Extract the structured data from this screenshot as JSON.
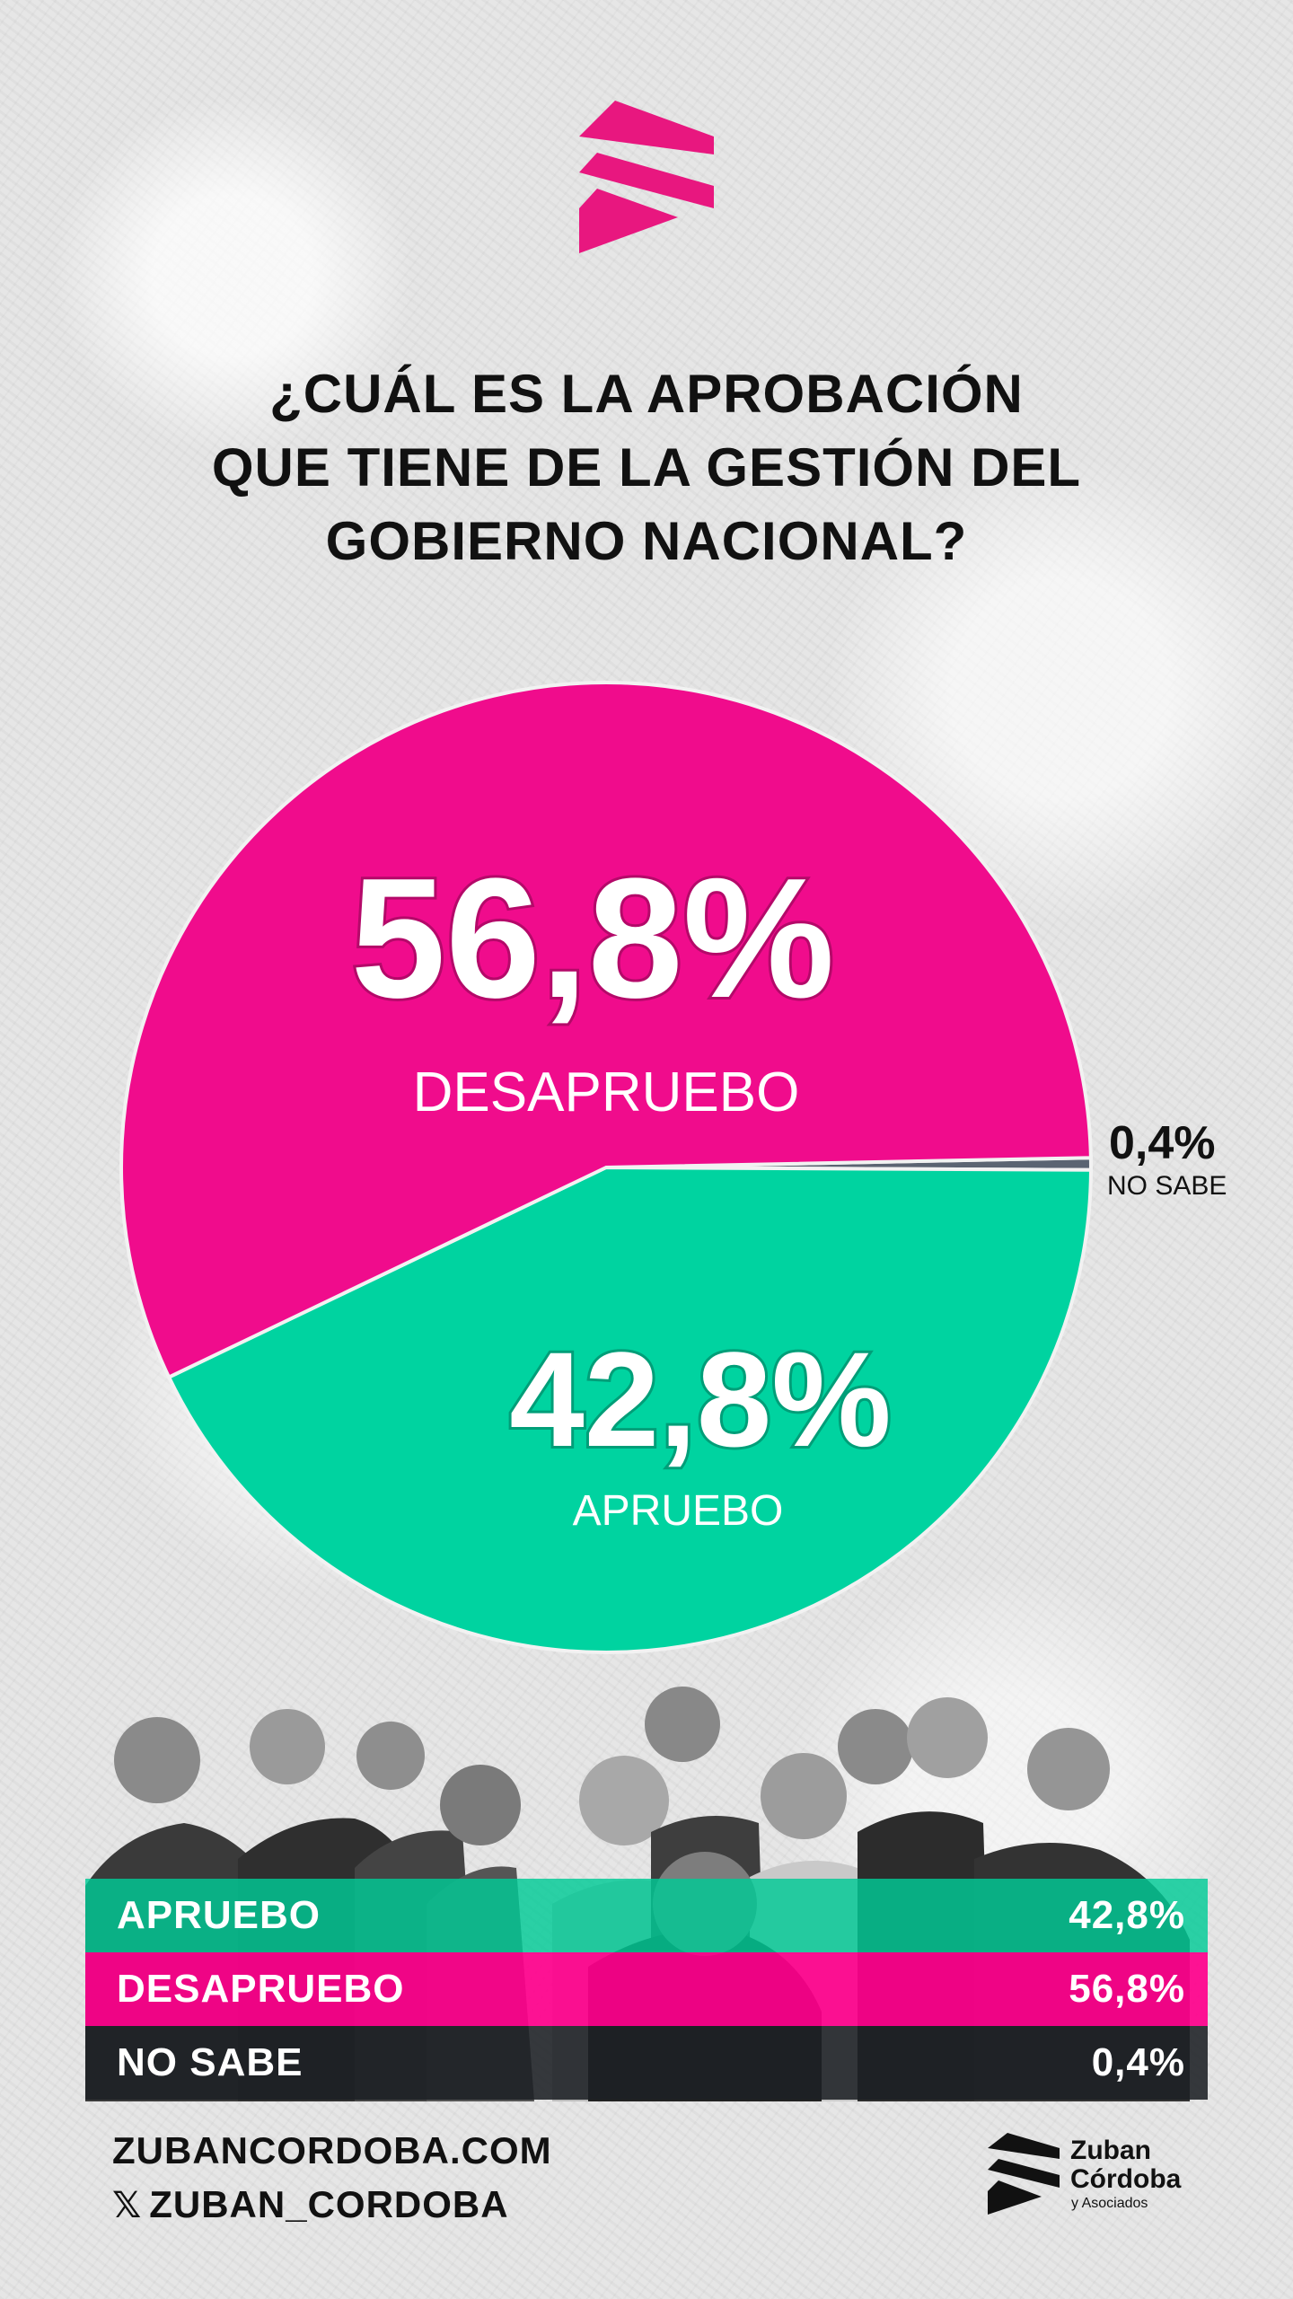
{
  "question": {
    "line1": "¿CUÁL ES LA APROBACIÓN",
    "line2": "QUE TIENE DE LA GESTIÓN DEL",
    "line3": "GOBIERNO NACIONAL?"
  },
  "colors": {
    "desapruebo": "#f00c8c",
    "apruebo": "#00d3a0",
    "no_sabe": "#5b6472",
    "dark": "#1c2024"
  },
  "chart_data": {
    "type": "pie",
    "slices": [
      {
        "label": "DESAPRUEBO",
        "value": 56.8,
        "display": "56,8%",
        "color": "#f00c8c"
      },
      {
        "label": "APRUEBO",
        "value": 42.8,
        "display": "42,8%",
        "color": "#00d3a0"
      },
      {
        "label": "NO SABE",
        "value": 0.4,
        "display": "0,4%",
        "color": "#5b6472"
      }
    ]
  },
  "table": [
    {
      "label": "APRUEBO",
      "value": "42,8%"
    },
    {
      "label": "DESAPRUEBO",
      "value": "56,8%"
    },
    {
      "label": "NO SABE",
      "value": "0,4%"
    }
  ],
  "footer": {
    "website": "ZUBANCORDOBA.COM",
    "x_icon": "x-logo-icon",
    "x_glyph": "𝕏",
    "handle": "ZUBAN_CORDOBA"
  },
  "brand": {
    "line1": "Zuban",
    "line2": "Córdoba",
    "line3": "y Asociados"
  }
}
